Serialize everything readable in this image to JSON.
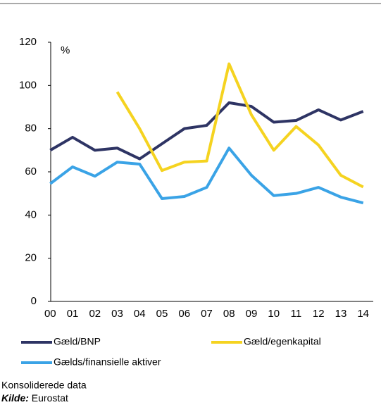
{
  "chart_data": {
    "type": "line",
    "unit_label": "%",
    "categories": [
      "00",
      "01",
      "02",
      "03",
      "04",
      "05",
      "06",
      "07",
      "08",
      "09",
      "10",
      "11",
      "12",
      "13",
      "14"
    ],
    "series": [
      {
        "name": "Gæld/BNP",
        "color": "#2e3464",
        "values": [
          70,
          76,
          70,
          71,
          66,
          73,
          80,
          81.5,
          92,
          90.3,
          83,
          83.8,
          88.7,
          84,
          88
        ]
      },
      {
        "name": "Gæld/egenkapital",
        "color": "#f5d320",
        "values": [
          null,
          null,
          null,
          97,
          80,
          60.6,
          64.5,
          65,
          110,
          86.4,
          70,
          81,
          72.4,
          58.4,
          53
        ]
      },
      {
        "name": "Gælds/finansielle aktiver",
        "color": "#3aa3e6",
        "values": [
          54.5,
          62.3,
          58,
          64.5,
          63.6,
          47.6,
          48.6,
          52.8,
          71,
          58.4,
          49,
          50,
          52.8,
          48.3,
          45.6
        ]
      }
    ],
    "ylim": [
      0,
      120
    ],
    "yticks": [
      0,
      20,
      40,
      60,
      80,
      100,
      120
    ],
    "grid": false,
    "notes": [
      "Konsoliderede data"
    ],
    "source_label": "Kilde:",
    "source": "Eurostat"
  }
}
